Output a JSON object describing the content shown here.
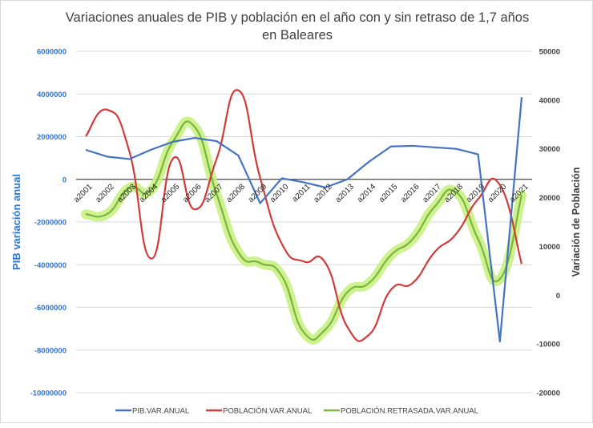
{
  "chart_data": {
    "type": "line",
    "title_lines": [
      "Variaciones anuales de PIB y población en el año con y sin retraso de 1,7 años",
      "en Baleares"
    ],
    "ylabel_left": "PIB variación anual",
    "ylabel_right": "Variación de Población",
    "xlabel": "",
    "ylim_left": [
      -10000000,
      6000000
    ],
    "ylim_right": [
      -20000,
      50000
    ],
    "yticks_left": [
      "6000000",
      "4000000",
      "2000000",
      "0",
      "-2000000",
      "-4000000",
      "-6000000",
      "-8000000",
      "-10000000"
    ],
    "yticks_right": [
      "50000",
      "40000",
      "30000",
      "20000",
      "10000",
      "0",
      "-10000",
      "-20000"
    ],
    "grid": true,
    "legend_position": "bottom",
    "categories": [
      "a2001",
      "a2002",
      "a2003",
      "a2004",
      "a2005",
      "a2006",
      "a2007",
      "a2008",
      "a2009",
      "a2010",
      "a2011",
      "a2012",
      "a2013",
      "a2014",
      "a2015",
      "a2016",
      "a2017",
      "a2018",
      "a2019",
      "a2020",
      "a2021"
    ],
    "series": [
      {
        "name": "PIB.VAR.ANUAL",
        "axis": "left",
        "color": "#4472c4",
        "smooth": false,
        "values": [
          1380000,
          1060000,
          950000,
          1390000,
          1760000,
          1940000,
          1790000,
          1120000,
          -1120000,
          50000,
          -140000,
          -380000,
          0,
          830000,
          1540000,
          1570000,
          1500000,
          1430000,
          1170000,
          -7600000,
          3850000
        ]
      },
      {
        "name": "POBLACIÓN.VAR.ANUAL",
        "axis": "right",
        "color": "#d13b3b",
        "smooth": true,
        "values": [
          32600,
          38000,
          29500,
          7500,
          28000,
          17600,
          27900,
          42000,
          24100,
          10500,
          6900,
          6600,
          -6500,
          -8100,
          1100,
          2500,
          8800,
          12600,
          19700,
          22600,
          6400
        ]
      },
      {
        "name": "POBLACIÓN.RETRASADA.VAR.ANUAL",
        "axis": "right",
        "color": "#7cb342",
        "glow": "#c6f07a",
        "smooth": true,
        "values": [
          16600,
          16700,
          22000,
          21600,
          31500,
          34500,
          20800,
          8800,
          6600,
          3900,
          -7600,
          -7000,
          600,
          2500,
          8200,
          11500,
          18100,
          21100,
          11500,
          3300,
          20500
        ]
      }
    ]
  }
}
